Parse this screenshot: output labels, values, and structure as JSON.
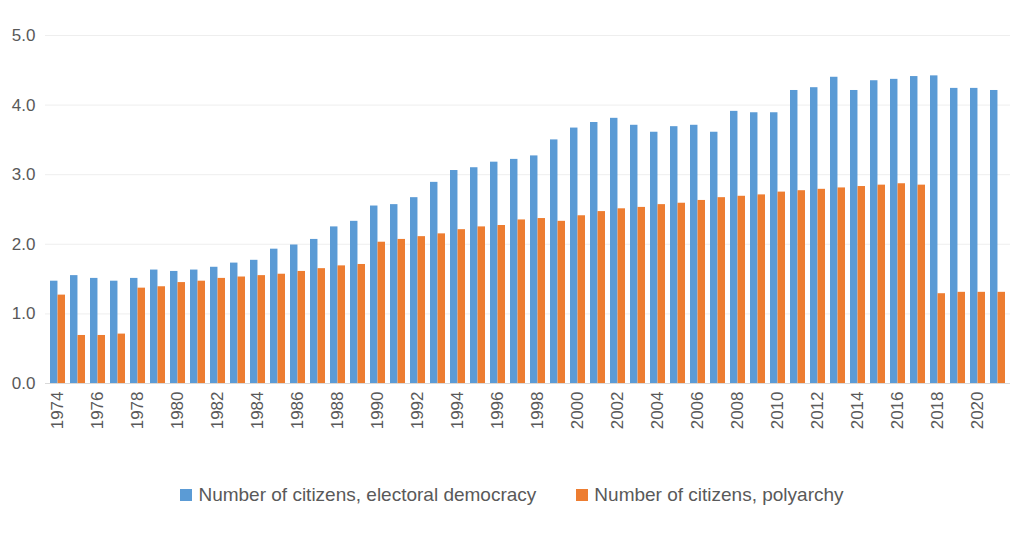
{
  "chart_data": {
    "type": "bar",
    "categories": [
      "1974",
      null,
      "1976",
      null,
      "1978",
      null,
      "1980",
      null,
      "1982",
      null,
      "1984",
      null,
      "1986",
      null,
      "1988",
      null,
      "1990",
      null,
      "1992",
      null,
      "1994",
      null,
      "1996",
      null,
      "1998",
      null,
      "2000",
      null,
      "2002",
      null,
      "2004",
      null,
      "2006",
      null,
      "2008",
      null,
      "2010",
      null,
      "2012",
      null,
      "2014",
      null,
      "2016",
      null,
      "2018",
      null,
      "2020",
      null
    ],
    "series": [
      {
        "name": "Number of citizens, electoral democracy",
        "color": "#5b9bd5",
        "values": [
          1.47,
          1.55,
          1.51,
          1.47,
          1.51,
          1.63,
          1.61,
          1.63,
          1.67,
          1.73,
          1.77,
          1.93,
          1.99,
          2.07,
          2.25,
          2.33,
          2.55,
          2.57,
          2.67,
          2.89,
          3.06,
          3.1,
          3.18,
          3.22,
          3.27,
          3.5,
          3.67,
          3.75,
          3.81,
          3.71,
          3.61,
          3.69,
          3.71,
          3.61,
          3.91,
          3.89,
          3.89,
          4.21,
          4.25,
          4.4,
          4.21,
          4.35,
          4.37,
          4.41,
          4.42,
          4.24,
          4.24,
          4.21
        ]
      },
      {
        "name": "Number of citizens, polyarchy",
        "color": "#ed7d31",
        "values": [
          1.27,
          0.69,
          0.69,
          0.71,
          1.37,
          1.39,
          1.45,
          1.47,
          1.51,
          1.53,
          1.55,
          1.57,
          1.61,
          1.65,
          1.69,
          1.71,
          2.03,
          2.07,
          2.11,
          2.15,
          2.21,
          2.25,
          2.27,
          2.35,
          2.37,
          2.33,
          2.41,
          2.47,
          2.51,
          2.53,
          2.57,
          2.59,
          2.63,
          2.67,
          2.69,
          2.71,
          2.75,
          2.77,
          2.79,
          2.81,
          2.83,
          2.85,
          2.87,
          2.85,
          1.29,
          1.31,
          1.31,
          1.31
        ]
      }
    ],
    "ylim": [
      0,
      5
    ],
    "yticks": [
      0,
      1,
      2,
      3,
      4,
      5
    ],
    "grid": true,
    "legend": "bottom"
  }
}
